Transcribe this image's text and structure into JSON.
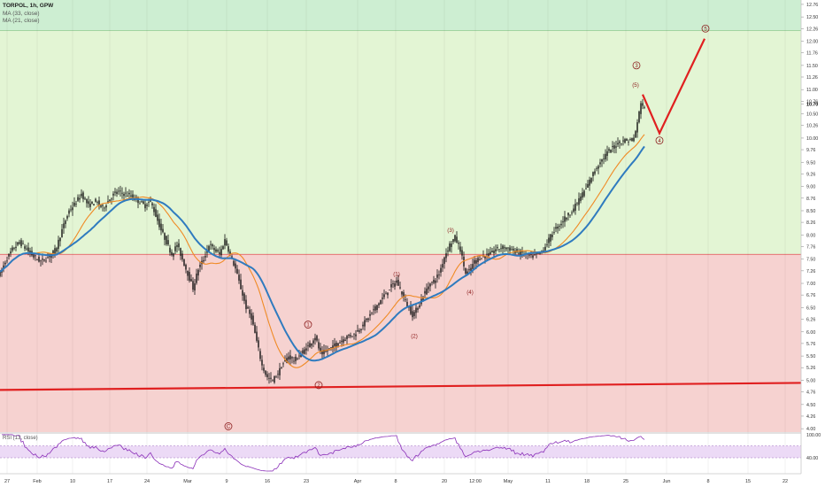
{
  "header": {
    "symbol": "TORPOL, 1h, GPW",
    "ma1": "MA (33, close)",
    "ma2": "MA (21, close)",
    "rsi_label": "RSI (13, close)"
  },
  "colors": {
    "green_zone": "#e3f5d4",
    "green_top_zone": "#cdeed2",
    "red_zone": "#f6d2d0",
    "rsi_band": "#ecdaf6",
    "rsi_line": "#8a2fb8",
    "ma_slow": "#2f7bbf",
    "ma_fast": "#f08a24",
    "candle": "#111111",
    "trendline": "#e02020",
    "projection": "#e02020",
    "wave_label": "#8b1a1a",
    "zone_border_red": "#e05050",
    "zone_border_green": "#8fca8f"
  },
  "chart_data": {
    "type": "candlestick",
    "price_axis": {
      "ylim": [
        3.93,
        12.85
      ],
      "tick_labels": [
        "12.76",
        "12.50",
        "12.26",
        "12.00",
        "11.76",
        "11.50",
        "11.26",
        "11.00",
        "10.76",
        "10.70",
        "10.50",
        "10.26",
        "10.00",
        "9.76",
        "9.50",
        "9.26",
        "9.00",
        "8.76",
        "8.50",
        "8.26",
        "8.00",
        "7.76",
        "7.50",
        "7.26",
        "7.00",
        "6.76",
        "6.50",
        "6.26",
        "6.00",
        "5.76",
        "5.50",
        "5.26",
        "5.00",
        "4.76",
        "4.50",
        "4.26",
        "4.00"
      ]
    },
    "time_axis": {
      "labels": [
        "27",
        "Feb",
        "10",
        "17",
        "24",
        "Mar",
        "9",
        "16",
        "23",
        "Apr",
        "8",
        "20",
        "12:00",
        "May",
        "11",
        "18",
        "25",
        "Jun",
        "8",
        "15",
        "22"
      ],
      "label_bars": [
        8,
        42,
        82,
        124,
        166,
        212,
        256,
        302,
        346,
        404,
        447,
        502,
        537,
        574,
        619,
        663,
        707,
        753,
        800,
        845,
        887
      ]
    },
    "zones": [
      {
        "from": 12.22,
        "to": 12.85,
        "color": "green_top_zone"
      },
      {
        "from": 7.6,
        "to": 12.22,
        "color": "green_zone"
      },
      {
        "from": 3.93,
        "to": 7.6,
        "color": "red_zone"
      }
    ],
    "trendline": {
      "points": [
        [
          0,
          4.8
        ],
        [
          932,
          4.95
        ]
      ]
    },
    "price_anchors": [
      [
        0,
        7.2
      ],
      [
        6,
        7.45
      ],
      [
        14,
        7.7
      ],
      [
        22,
        7.85
      ],
      [
        30,
        7.7
      ],
      [
        38,
        7.55
      ],
      [
        46,
        7.45
      ],
      [
        55,
        7.55
      ],
      [
        63,
        7.7
      ],
      [
        70,
        8.1
      ],
      [
        78,
        8.5
      ],
      [
        85,
        8.65
      ],
      [
        92,
        8.85
      ],
      [
        100,
        8.6
      ],
      [
        108,
        8.7
      ],
      [
        116,
        8.55
      ],
      [
        124,
        8.75
      ],
      [
        132,
        8.9
      ],
      [
        140,
        8.85
      ],
      [
        148,
        8.8
      ],
      [
        156,
        8.7
      ],
      [
        164,
        8.6
      ],
      [
        170,
        8.7
      ],
      [
        176,
        8.4
      ],
      [
        182,
        8.1
      ],
      [
        188,
        7.85
      ],
      [
        194,
        7.6
      ],
      [
        200,
        7.8
      ],
      [
        206,
        7.5
      ],
      [
        212,
        7.2
      ],
      [
        218,
        6.9
      ],
      [
        224,
        7.3
      ],
      [
        230,
        7.5
      ],
      [
        236,
        7.8
      ],
      [
        242,
        7.7
      ],
      [
        248,
        7.6
      ],
      [
        254,
        7.9
      ],
      [
        260,
        7.6
      ],
      [
        266,
        7.3
      ],
      [
        272,
        6.9
      ],
      [
        278,
        6.5
      ],
      [
        284,
        6.3
      ],
      [
        290,
        5.8
      ],
      [
        296,
        5.3
      ],
      [
        302,
        5.05
      ],
      [
        308,
        5.0
      ],
      [
        314,
        5.15
      ],
      [
        320,
        5.35
      ],
      [
        326,
        5.5
      ],
      [
        332,
        5.4
      ],
      [
        340,
        5.55
      ],
      [
        348,
        5.7
      ],
      [
        356,
        5.9
      ],
      [
        362,
        5.55
      ],
      [
        368,
        5.6
      ],
      [
        376,
        5.7
      ],
      [
        384,
        5.8
      ],
      [
        392,
        5.9
      ],
      [
        400,
        5.95
      ],
      [
        408,
        6.1
      ],
      [
        416,
        6.3
      ],
      [
        424,
        6.5
      ],
      [
        432,
        6.7
      ],
      [
        440,
        6.9
      ],
      [
        448,
        7.05
      ],
      [
        454,
        6.8
      ],
      [
        460,
        6.55
      ],
      [
        466,
        6.35
      ],
      [
        472,
        6.5
      ],
      [
        478,
        6.75
      ],
      [
        484,
        6.95
      ],
      [
        490,
        7.05
      ],
      [
        496,
        7.2
      ],
      [
        502,
        7.55
      ],
      [
        508,
        7.8
      ],
      [
        514,
        7.95
      ],
      [
        520,
        7.7
      ],
      [
        526,
        7.2
      ],
      [
        530,
        7.25
      ],
      [
        536,
        7.45
      ],
      [
        544,
        7.55
      ],
      [
        552,
        7.6
      ],
      [
        560,
        7.7
      ],
      [
        568,
        7.75
      ],
      [
        576,
        7.7
      ],
      [
        584,
        7.65
      ],
      [
        592,
        7.6
      ],
      [
        600,
        7.55
      ],
      [
        608,
        7.6
      ],
      [
        614,
        7.7
      ],
      [
        620,
        7.9
      ],
      [
        626,
        8.1
      ],
      [
        632,
        8.2
      ],
      [
        638,
        8.35
      ],
      [
        644,
        8.45
      ],
      [
        650,
        8.6
      ],
      [
        656,
        8.8
      ],
      [
        662,
        8.95
      ],
      [
        668,
        9.2
      ],
      [
        674,
        9.4
      ],
      [
        680,
        9.55
      ],
      [
        686,
        9.7
      ],
      [
        692,
        9.8
      ],
      [
        698,
        9.9
      ],
      [
        704,
        9.95
      ],
      [
        710,
        9.95
      ],
      [
        716,
        10.0
      ],
      [
        720,
        10.3
      ],
      [
        724,
        10.75
      ],
      [
        728,
        10.6
      ]
    ],
    "ma_fast_period": 21,
    "ma_slow_period": 33,
    "projection": {
      "points": [
        [
          726,
          10.9
        ],
        [
          745,
          10.1
        ],
        [
          796,
          12.05
        ]
      ]
    },
    "wave_labels": [
      {
        "text": "1",
        "x": 348,
        "price": 6.15,
        "circle": true
      },
      {
        "text": "2",
        "x": 360,
        "price": 4.9,
        "circle": true
      },
      {
        "text": "C",
        "x": 258,
        "price": 4.05,
        "circle": true
      },
      {
        "text": "(1)",
        "x": 448,
        "price": 7.2,
        "circle": false
      },
      {
        "text": "(2)",
        "x": 468,
        "price": 5.92,
        "circle": false
      },
      {
        "text": "(3)",
        "x": 509,
        "price": 8.1,
        "circle": false
      },
      {
        "text": "(4)",
        "x": 531,
        "price": 6.82,
        "circle": false
      },
      {
        "text": "(5)",
        "x": 718,
        "price": 11.1,
        "circle": false
      },
      {
        "text": "3",
        "x": 719,
        "price": 11.5,
        "circle": true
      },
      {
        "text": "4",
        "x": 745,
        "price": 9.95,
        "circle": true
      },
      {
        "text": "5",
        "x": 797,
        "price": 12.26,
        "circle": true
      }
    ],
    "rsi": {
      "period": 13,
      "ylim": [
        0,
        100
      ],
      "band": [
        40,
        70
      ],
      "tick_labels": [
        "100.00",
        "40.00"
      ]
    }
  }
}
